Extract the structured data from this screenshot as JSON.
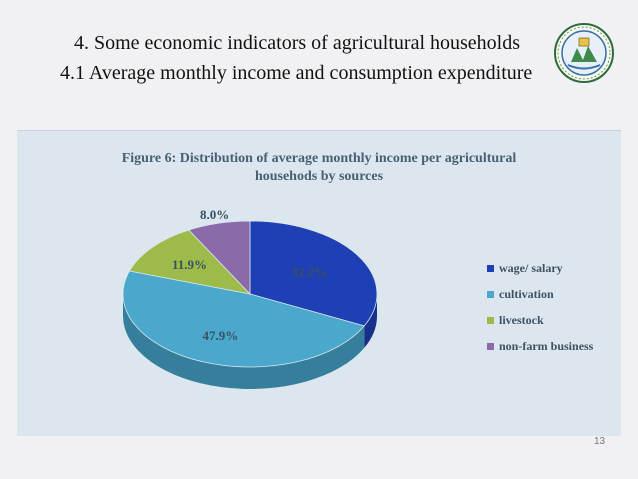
{
  "slide": {
    "title_line1": "4. Some economic indicators of agricultural households",
    "title_line2": "4.1 Average monthly income and consumption expenditure",
    "page_number": "13",
    "logo_icon": "university-seal-icon"
  },
  "chart_data": {
    "type": "pie",
    "title_line1": "Figure 6: Distribution of average monthly income per agricultural",
    "title_line2": "househods by sources",
    "categories": [
      "wage/ salary",
      "cultivation",
      "livestock",
      "non-farm business"
    ],
    "values": [
      32.2,
      47.9,
      11.9,
      8.0
    ],
    "data_labels": [
      "32.2%",
      "47.9%",
      "11.9%",
      "8.0%"
    ],
    "colors": [
      "#1f3fb4",
      "#4aa8cc",
      "#9cbb4a",
      "#8a6aa8"
    ],
    "side_colors": [
      "#17308a",
      "#357e9c",
      "#76903a",
      "#66508a"
    ],
    "legend_placement": "right",
    "three_d": true
  }
}
